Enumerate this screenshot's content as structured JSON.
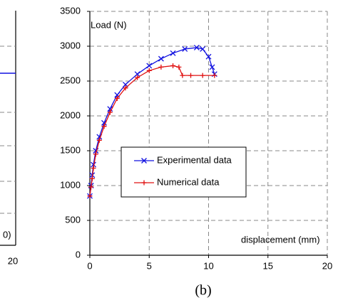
{
  "chart_data": [
    {
      "type": "fragment",
      "ylabel": "0)",
      "xticks": [
        20
      ]
    },
    {
      "type": "line",
      "caption": "(b)",
      "ylabel": "Load (N)",
      "xlabel": "displacement (mm)",
      "xlim": [
        0,
        20
      ],
      "xticks": [
        0,
        5,
        10,
        15,
        20
      ],
      "ylim": [
        0,
        3500
      ],
      "yticks": [
        0,
        500,
        1000,
        1500,
        2000,
        2500,
        3000,
        3500
      ],
      "grid": true,
      "legend": "center",
      "series": [
        {
          "name": "Experimental data",
          "color": "#1010e0",
          "marker": "x",
          "x": [
            0,
            0.1,
            0.2,
            0.3,
            0.5,
            0.8,
            1.2,
            1.7,
            2.3,
            3,
            4,
            5,
            6,
            7,
            8,
            9,
            9.5,
            10,
            10.3,
            10.5
          ],
          "values": [
            850,
            1000,
            1150,
            1300,
            1500,
            1700,
            1900,
            2100,
            2300,
            2450,
            2600,
            2720,
            2820,
            2900,
            2960,
            2980,
            2960,
            2850,
            2700,
            2600
          ]
        },
        {
          "name": "Numerical data",
          "color": "#e01010",
          "marker": "+",
          "x": [
            0,
            0.1,
            0.2,
            0.3,
            0.5,
            0.8,
            1.2,
            1.7,
            2.3,
            3,
            4,
            5,
            6,
            7,
            7.5,
            7.8,
            8.5,
            9.5,
            10.5
          ],
          "values": [
            850,
            980,
            1100,
            1250,
            1450,
            1650,
            1850,
            2050,
            2250,
            2400,
            2550,
            2650,
            2700,
            2720,
            2700,
            2580,
            2580,
            2580,
            2580
          ]
        }
      ]
    }
  ]
}
